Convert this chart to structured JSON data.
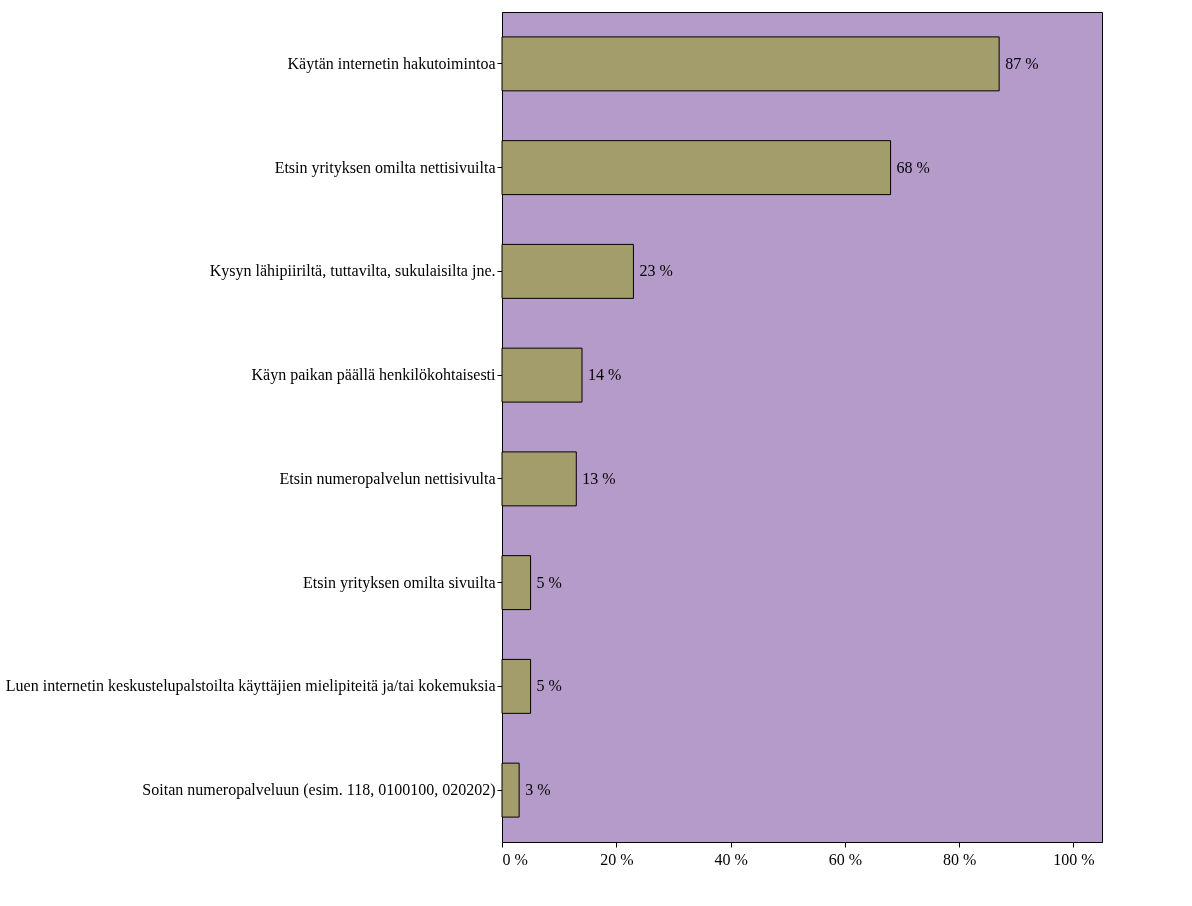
{
  "chart_data": {
    "type": "bar",
    "orientation": "horizontal",
    "categories": [
      "Käytän internetin hakutoimintoa",
      "Etsin yrityksen omilta nettisivuilta",
      "Kysyn lähipiiriltä, tuttavilta, sukulaisilta jne.",
      "Käyn paikan päällä henkilökohtaisesti",
      "Etsin numeropalvelun nettisivulta",
      "Etsin yrityksen omilta sivuilta",
      "Luen internetin keskustelupalstoilta käyttäjien mielipiteitä ja/tai kokemuksia",
      "Soitan numeropalveluun (esim. 118, 0100100, 020202)"
    ],
    "values": [
      87,
      68,
      23,
      14,
      13,
      5,
      5,
      3
    ],
    "value_labels": [
      "87 %",
      "68 %",
      "23 %",
      "14 %",
      "13 %",
      "5 %",
      "5 %",
      "3 %"
    ],
    "color": "#a39d6b",
    "xlim": [
      0,
      105
    ],
    "xticks": [
      {
        "value": 0,
        "label": "0 %"
      },
      {
        "value": 20,
        "label": "20 %"
      },
      {
        "value": 40,
        "label": "40 %"
      },
      {
        "value": 60,
        "label": "60 %"
      },
      {
        "value": 80,
        "label": "80 %"
      },
      {
        "value": 100,
        "label": "100 %"
      }
    ],
    "grid": false
  }
}
